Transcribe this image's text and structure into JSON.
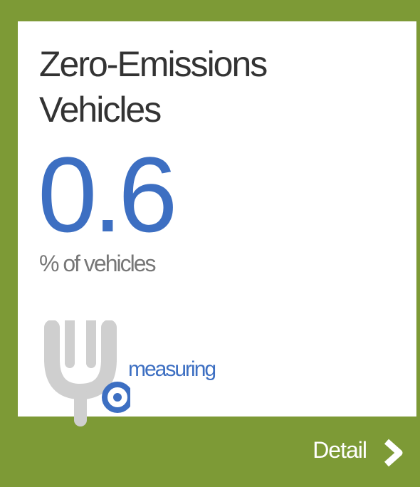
{
  "tile": {
    "title": "Zero-Emissions Vehicles",
    "value": 0.6,
    "unit": "% of vehicles",
    "status": "measuring",
    "link": "Detail"
  }
}
